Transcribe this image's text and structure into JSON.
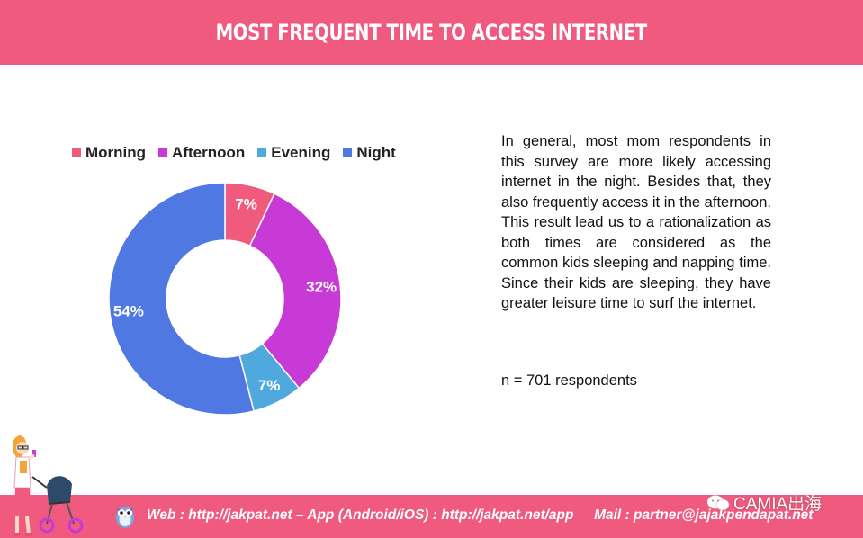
{
  "header": {
    "title": "MOST FREQUENT TIME TO ACCESS INTERNET"
  },
  "chart_data": {
    "type": "pie",
    "donut": true,
    "legend_position": "top",
    "categories": [
      "Morning",
      "Afternoon",
      "Evening",
      "Night"
    ],
    "values": [
      7,
      32,
      7,
      54
    ],
    "labels": [
      "7%",
      "32%",
      "7%",
      "54%"
    ],
    "colors": [
      "#ef5a7d",
      "#c83ad6",
      "#4fa8de",
      "#4f78e2"
    ]
  },
  "description": {
    "text": "In general, most mom respondents in this survey are more likely accessing internet in the night. Besides that, they also frequently access it in the afternoon. This result lead us to a rationalization as both times are considered as the common kids sleeping and napping time. Since their kids are sleeping, they have greater leisure time to surf the internet.",
    "sample_size": "n = 701 respondents"
  },
  "footer": {
    "web": "Web : http://jakpat.net",
    "app": "– App (Android/iOS) : http://jakpat.net/app",
    "mail": "Mail : partner@jajakpendapat.net",
    "color": "#f05a7e"
  },
  "watermark": {
    "text": "CAMIA出海"
  }
}
